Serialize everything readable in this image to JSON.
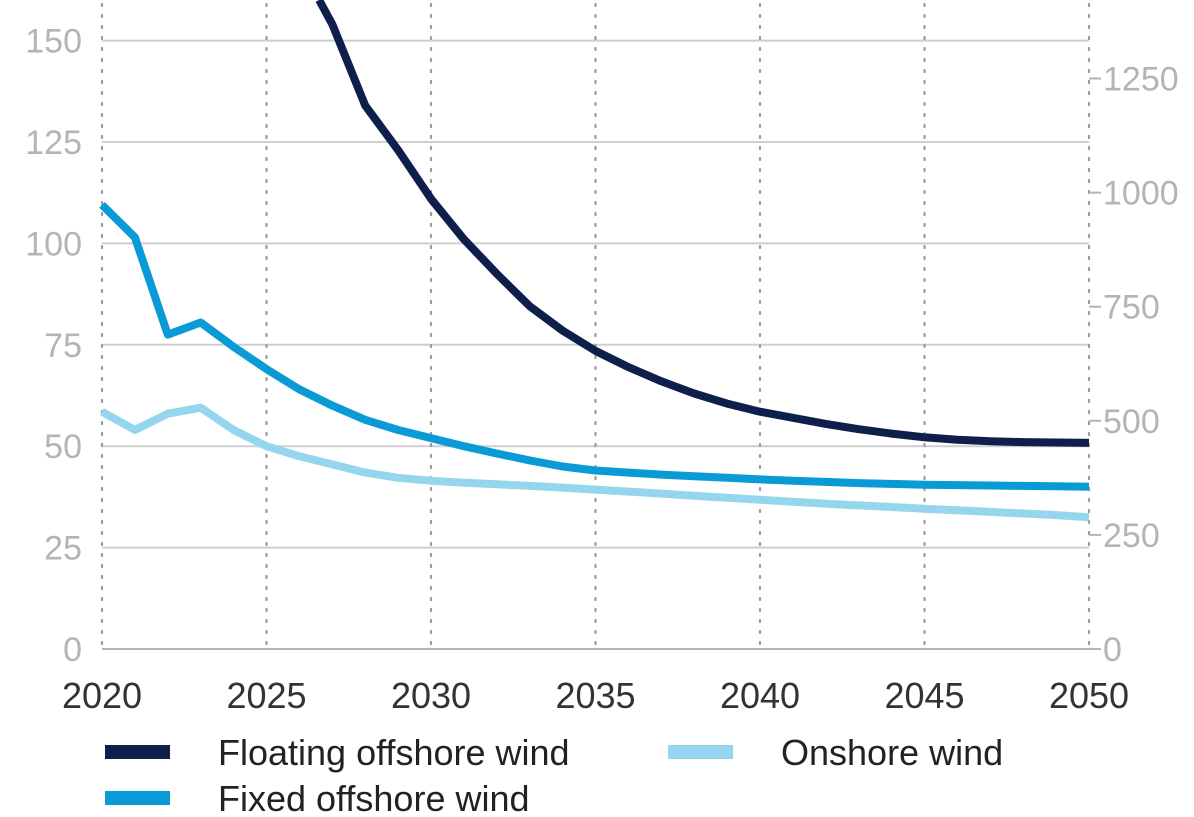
{
  "chart_data": {
    "type": "line",
    "title": "",
    "xlabel": "",
    "ylabel": "",
    "xlim": [
      2020,
      2050
    ],
    "ylim": [
      0,
      160
    ],
    "y2lim": [
      0,
      1422
    ],
    "grid": {
      "horizontal": true,
      "vertical_dotted": true
    },
    "x_ticks": [
      "2020",
      "2025",
      "2030",
      "2035",
      "2040",
      "2045",
      "2050"
    ],
    "y_ticks": [
      "0",
      "25",
      "50",
      "75",
      "100",
      "125",
      "150"
    ],
    "y2_ticks": [
      "0",
      "250",
      "500",
      "750",
      "1000",
      "1250"
    ],
    "legend_position": "bottom",
    "series": [
      {
        "name": "Floating offshore wind",
        "color": "#0f1f4b",
        "axis": "left",
        "x": [
          2026.6,
          2027,
          2028,
          2029,
          2030,
          2031,
          2032,
          2033,
          2034,
          2035,
          2036,
          2037,
          2038,
          2039,
          2040,
          2041,
          2042,
          2043,
          2044,
          2045,
          2046,
          2047,
          2048,
          2049,
          2050
        ],
        "y": [
          160,
          154,
          134,
          123,
          111,
          101,
          92.5,
          84.5,
          78.5,
          73.5,
          69.5,
          66,
          63,
          60.5,
          58.5,
          57,
          55.5,
          54.2,
          53.1,
          52.2,
          51.6,
          51.2,
          51,
          50.9,
          50.8
        ]
      },
      {
        "name": "Fixed offshore wind",
        "color": "#0a9bd6",
        "axis": "left",
        "x": [
          2020,
          2021,
          2022,
          2023,
          2024,
          2025,
          2026,
          2027,
          2028,
          2029,
          2030,
          2031,
          2032,
          2033,
          2034,
          2035,
          2036,
          2037,
          2038,
          2039,
          2040,
          2041,
          2042,
          2043,
          2044,
          2045,
          2046,
          2047,
          2048,
          2049,
          2050
        ],
        "y": [
          109.5,
          101.5,
          77.5,
          80.5,
          74.5,
          69,
          64,
          60,
          56.5,
          54,
          52,
          50,
          48.2,
          46.5,
          45,
          44,
          43.5,
          43,
          42.6,
          42.2,
          41.8,
          41.5,
          41.2,
          40.9,
          40.7,
          40.5,
          40.4,
          40.3,
          40.2,
          40.1,
          40
        ]
      },
      {
        "name": "Onshore wind",
        "color": "#95d6ee",
        "axis": "left",
        "x": [
          2020,
          2021,
          2022,
          2023,
          2024,
          2025,
          2026,
          2027,
          2028,
          2029,
          2030,
          2031,
          2032,
          2033,
          2034,
          2035,
          2036,
          2037,
          2038,
          2039,
          2040,
          2041,
          2042,
          2043,
          2044,
          2045,
          2046,
          2047,
          2048,
          2049,
          2050
        ],
        "y": [
          58.5,
          54,
          58,
          59.5,
          54,
          50,
          47.5,
          45.5,
          43.5,
          42.2,
          41.5,
          41,
          40.6,
          40.2,
          39.8,
          39.3,
          38.8,
          38.3,
          37.8,
          37.3,
          36.8,
          36.3,
          35.8,
          35.4,
          35,
          34.6,
          34.2,
          33.8,
          33.4,
          33,
          32.5
        ]
      }
    ]
  },
  "legend": {
    "items": [
      {
        "label": "Floating offshore wind",
        "color": "#0f1f4b"
      },
      {
        "label": "Onshore wind",
        "color": "#95d6ee"
      },
      {
        "label": "Fixed offshore wind",
        "color": "#0a9bd6"
      }
    ]
  }
}
